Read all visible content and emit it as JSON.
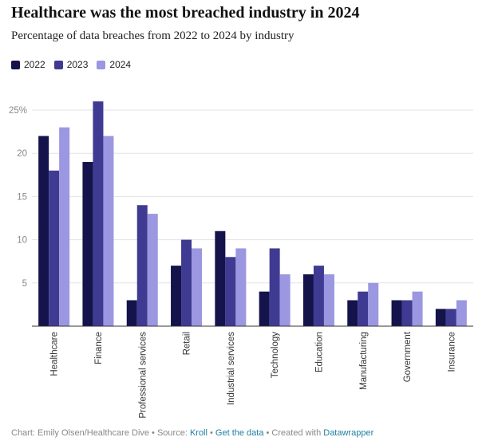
{
  "chart_data": {
    "type": "bar",
    "title": "Healthcare was the most breached industry in 2024",
    "subtitle": "Percentage of data breaches from 2022 to 2024 by industry",
    "xlabel": "",
    "ylabel": "",
    "ylim": [
      0,
      25
    ],
    "yticks": [
      0,
      5,
      10,
      15,
      20,
      25
    ],
    "ytick_labels": [
      "",
      "5",
      "10",
      "15",
      "20",
      "25%"
    ],
    "grid": true,
    "legend_position": "top-left",
    "categories": [
      "Healthcare",
      "Finance",
      "Professional services",
      "Retail",
      "Industrial services",
      "Technology",
      "Education",
      "Manufacturing",
      "Government",
      "Insurance"
    ],
    "series": [
      {
        "name": "2022",
        "color": "#15134b",
        "values": [
          22,
          19,
          3,
          7,
          11,
          4,
          6,
          3,
          3,
          2
        ]
      },
      {
        "name": "2023",
        "color": "#3f3b92",
        "values": [
          18,
          26,
          14,
          10,
          8,
          9,
          7,
          4,
          3,
          2
        ]
      },
      {
        "name": "2024",
        "color": "#9b97e0",
        "values": [
          23,
          22,
          13,
          9,
          9,
          6,
          6,
          5,
          4,
          3
        ]
      }
    ]
  },
  "footer": {
    "prefix": "Chart: Emily Olsen/Healthcare Dive • Source: ",
    "source_link": "Kroll",
    "separator1": " • ",
    "data_link": "Get the data",
    "middle": " • Created with ",
    "tool_link": "Datawrapper"
  }
}
